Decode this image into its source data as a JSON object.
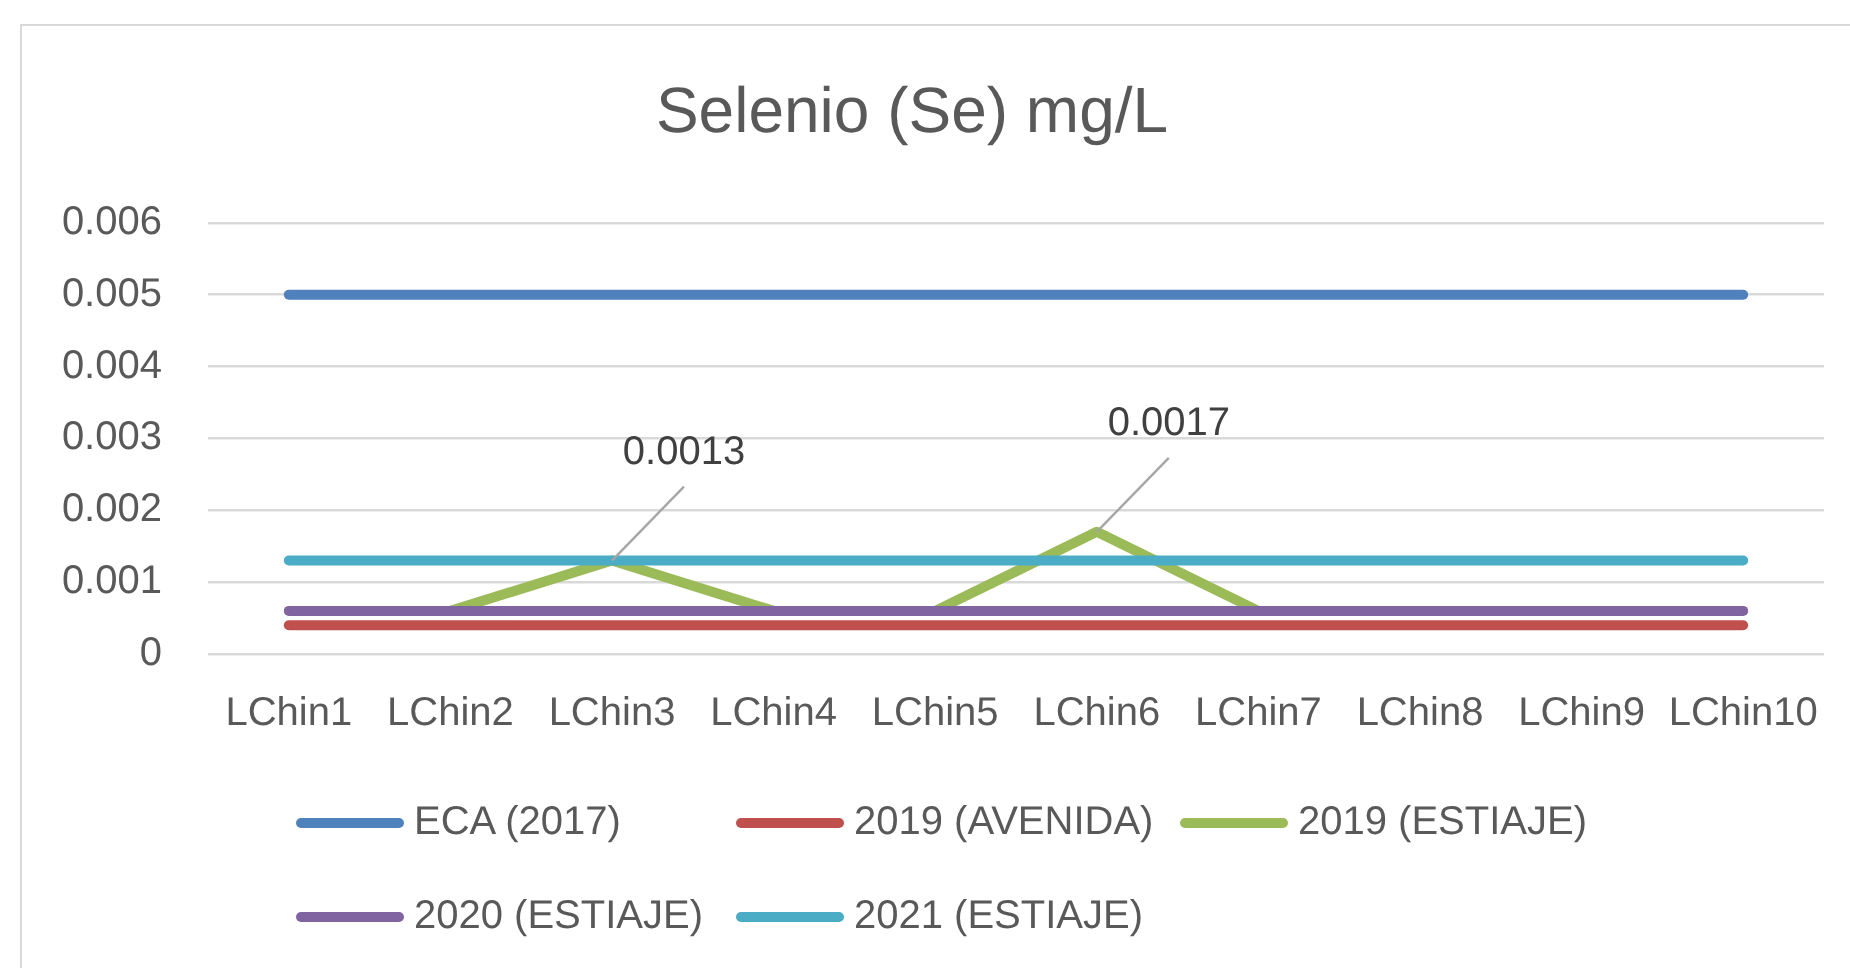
{
  "chart_data": {
    "type": "line",
    "title": "Selenio (Se) mg/L",
    "categories": [
      "LChin1",
      "LChin2",
      "LChin3",
      "LChin4",
      "LChin5",
      "LChin6",
      "LChin7",
      "LChin8",
      "LChin9",
      "LChin10"
    ],
    "series": [
      {
        "name": "ECA (2017)",
        "color": "#4f81bd",
        "values": [
          0.005,
          0.005,
          0.005,
          0.005,
          0.005,
          0.005,
          0.005,
          0.005,
          0.005,
          0.005
        ]
      },
      {
        "name": "2019 (AVENIDA)",
        "color": "#c0504d",
        "values": [
          0.0004,
          0.0004,
          0.0004,
          0.0004,
          0.0004,
          0.0004,
          0.0004,
          0.0004,
          0.0004,
          0.0004
        ]
      },
      {
        "name": "2019 (ESTIAJE)",
        "color": "#9bbb59",
        "values": [
          null,
          0.0006,
          0.0013,
          0.0006,
          0.0006,
          0.0017,
          0.0006,
          null,
          null,
          null
        ],
        "value_labels": [
          null,
          null,
          "0.0013",
          null,
          null,
          "0.0017",
          null,
          null,
          null,
          null
        ]
      },
      {
        "name": "2020 (ESTIAJE)",
        "color": "#8064a2",
        "values": [
          0.0006,
          0.0006,
          0.0006,
          0.0006,
          0.0006,
          0.0006,
          0.0006,
          0.0006,
          0.0006,
          0.0006
        ]
      },
      {
        "name": "2021 (ESTIAJE)",
        "color": "#4bacc6",
        "values": [
          0.0013,
          0.0013,
          0.0013,
          0.0013,
          0.0013,
          0.0013,
          0.0013,
          0.0013,
          0.0013,
          0.0013
        ]
      }
    ],
    "ylim": [
      0,
      0.006
    ],
    "yticks": [
      0,
      0.001,
      0.002,
      0.003,
      0.004,
      0.005,
      0.006
    ],
    "grid": "y",
    "legend": "bottom",
    "marker": "none",
    "line_style": "solid"
  }
}
